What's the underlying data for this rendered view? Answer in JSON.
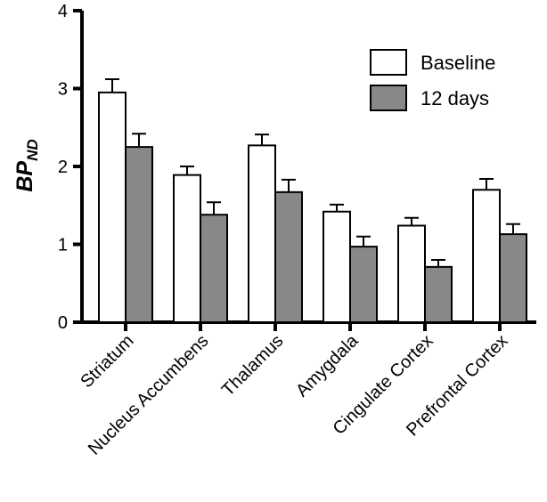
{
  "chart_data": {
    "type": "bar",
    "title": "",
    "xlabel": "",
    "ylabel": "BP",
    "ylabel_subscript": "ND",
    "ylim": [
      0,
      4
    ],
    "yticks": [
      "0",
      "1",
      "2",
      "3",
      "4"
    ],
    "categories": [
      "Striatum",
      "Nucleus Accumbens",
      "Thalamus",
      "Amygdala",
      "Cingulate Cortex",
      "Prefrontal Cortex"
    ],
    "series": [
      {
        "name": "Baseline",
        "color": "#ffffff",
        "values": [
          2.95,
          1.89,
          2.27,
          1.42,
          1.24,
          1.7
        ],
        "errors": [
          0.17,
          0.11,
          0.14,
          0.09,
          0.1,
          0.14
        ]
      },
      {
        "name": "12 days",
        "color": "#888888",
        "values": [
          2.25,
          1.38,
          1.67,
          0.97,
          0.71,
          1.13
        ],
        "errors": [
          0.17,
          0.16,
          0.16,
          0.13,
          0.09,
          0.13
        ]
      }
    ],
    "error_bars": "one-sided (upper)",
    "grid": false,
    "legend_position": "top-right"
  }
}
